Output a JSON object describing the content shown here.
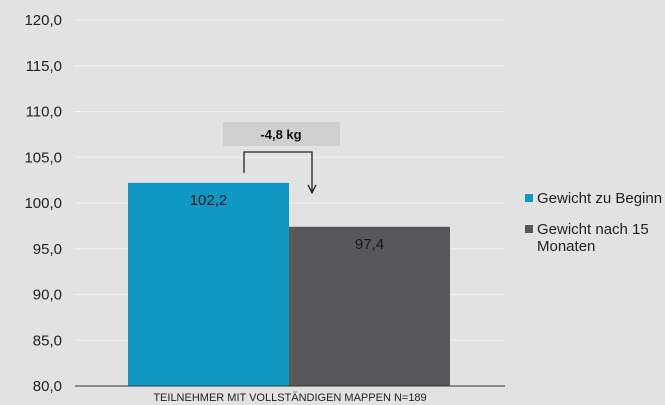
{
  "chart_data": {
    "type": "bar",
    "title": "",
    "xlabel": "",
    "ylabel": "",
    "ylim": [
      80,
      120
    ],
    "ytick_step": 5,
    "y_ticks": [
      "80,0",
      "85,0",
      "90,0",
      "95,0",
      "100,0",
      "105,0",
      "110,0",
      "115,0",
      "120,0"
    ],
    "grid": true,
    "legend_position": "right",
    "categories": [
      "TEILNEHMER MIT VOLLSTÄNDIGEN MAPPEN N=189"
    ],
    "series": [
      {
        "name": "Gewicht zu Beginn",
        "values": [
          102.2
        ],
        "value_label": "102,2",
        "color": "#0f98c2"
      },
      {
        "name": "Gewicht nach 15 Monaten",
        "values": [
          97.4
        ],
        "value_label": "97,4",
        "color": "#58585a"
      }
    ],
    "annotation": {
      "text": "-4,8 kg"
    }
  }
}
